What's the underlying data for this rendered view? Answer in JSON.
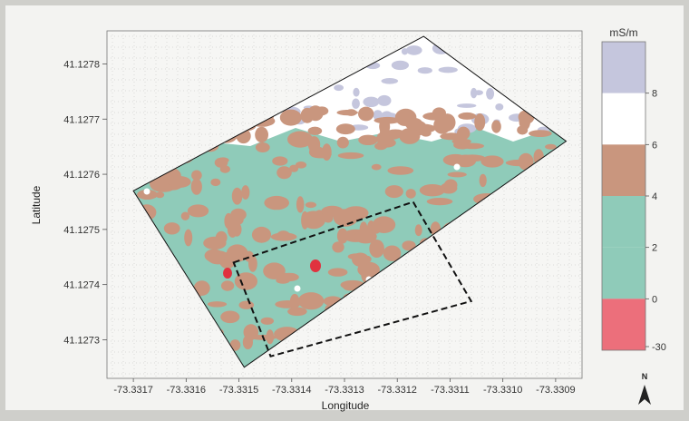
{
  "chart_data": {
    "type": "heatmap",
    "title": "",
    "xlabel": "Longitude",
    "ylabel": "Latitude",
    "x_ticks": [
      "-73.3317",
      "-73.3316",
      "-73.3315",
      "-73.3314",
      "-73.3313",
      "-73.3312",
      "-73.3311",
      "-73.3310",
      "-73.3309"
    ],
    "y_ticks": [
      "41.1278",
      "41.1277",
      "41.1276",
      "41.1275",
      "41.1274",
      "41.1273"
    ],
    "xlim": [
      -73.33175,
      -73.33085
    ],
    "ylim": [
      41.12723,
      41.12786
    ],
    "grid": true,
    "survey_boundary": [
      [
        -73.3317,
        41.12757
      ],
      [
        -73.33115,
        41.12785
      ],
      [
        -73.33088,
        41.12766
      ],
      [
        -73.33149,
        41.12725
      ]
    ],
    "study_area": [
      [
        -73.33151,
        41.12744
      ],
      [
        -73.33117,
        41.12755
      ],
      [
        -73.33106,
        41.12737
      ],
      [
        -73.33144,
        41.12727
      ]
    ],
    "colorbar": {
      "unit": "mS/m",
      "tick_labels": [
        "8",
        "6",
        "4",
        "2",
        "0",
        "-30"
      ],
      "bands": [
        {
          "from": 8,
          "to": 10,
          "color": "#c5c6dd"
        },
        {
          "from": 6,
          "to": 8,
          "color": "#ffffff"
        },
        {
          "from": 4,
          "to": 6,
          "color": "#c9967e"
        },
        {
          "from": 2,
          "to": 4,
          "color": "#8fcbb9"
        },
        {
          "from": 0,
          "to": 2,
          "color": "#8fcbb9"
        },
        {
          "from": -30,
          "to": 0,
          "color": "#ec6f7b"
        }
      ]
    },
    "north_arrow": "N"
  }
}
